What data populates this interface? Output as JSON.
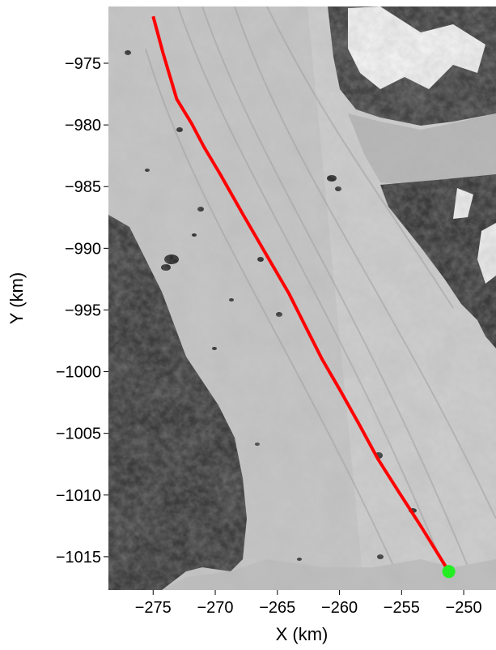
{
  "chart_data": {
    "type": "map",
    "xlabel": "X (km)",
    "ylabel": "Y (km)",
    "xlim": [
      -278.6,
      -247.4
    ],
    "ylim": [
      -1017.7,
      -970.4
    ],
    "x_ticks": [
      {
        "value": -275,
        "label": "−275"
      },
      {
        "value": -270,
        "label": "−270"
      },
      {
        "value": -265,
        "label": "−265"
      },
      {
        "value": -260,
        "label": "−260"
      },
      {
        "value": -255,
        "label": "−255"
      },
      {
        "value": -250,
        "label": "−250"
      }
    ],
    "y_ticks": [
      {
        "value": -975,
        "label": "−975"
      },
      {
        "value": -980,
        "label": "−980"
      },
      {
        "value": -985,
        "label": "−985"
      },
      {
        "value": -990,
        "label": "−990"
      },
      {
        "value": -995,
        "label": "−995"
      },
      {
        "value": -1000,
        "label": "−1000"
      },
      {
        "value": -1005,
        "label": "−1005"
      },
      {
        "value": -1010,
        "label": "−1010"
      },
      {
        "value": -1015,
        "label": "−1015"
      }
    ],
    "flowline": {
      "color": "#ff0000",
      "x": [
        -275.0,
        -274.2,
        -273.1,
        -271.9,
        -270.9,
        -269.6,
        -267.8,
        -265.9,
        -264.1,
        -262.6,
        -261.4,
        -259.9,
        -258.4,
        -256.9,
        -255.2,
        -253.4,
        -251.2
      ],
      "y": [
        -971.2,
        -974.2,
        -977.9,
        -979.9,
        -981.8,
        -984.0,
        -987.2,
        -990.5,
        -993.6,
        -996.6,
        -999.0,
        -1001.6,
        -1004.3,
        -1007.1,
        -1009.8,
        -1012.6,
        -1016.2
      ]
    },
    "marker": {
      "x": -251.2,
      "y": -1016.2,
      "color": "#22ee22"
    },
    "background": "grayscale satellite image of a glacier outlet with dark rocky terrain"
  }
}
